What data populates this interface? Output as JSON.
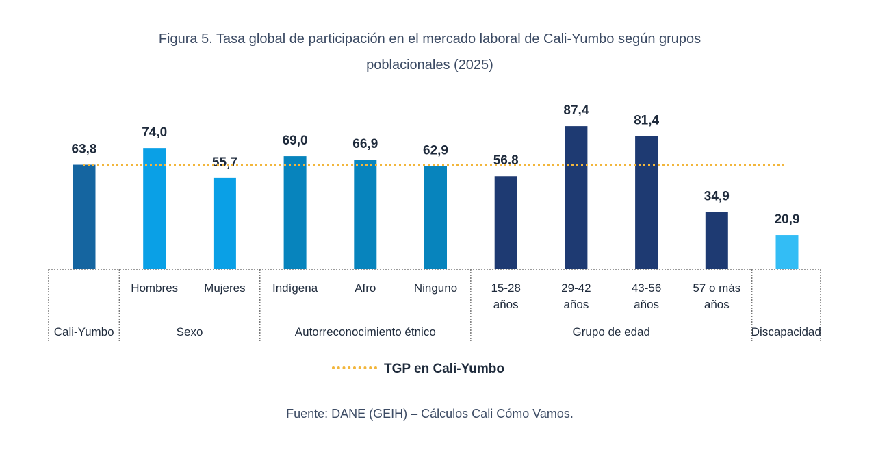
{
  "title_line1": "Figura 5. Tasa global de participación en el mercado laboral de Cali-Yumbo según grupos",
  "title_line2": "poblacionales (2025)",
  "legend_label": "TGP en Cali-Yumbo",
  "source": "Fuente: DANE (GEIH) – Cálculos Cali Cómo Vamos.",
  "colors": {
    "cali_yumbo": "#1565a0",
    "sexo": "#0aa0e6",
    "etnico": "#0784bd",
    "edad": "#1e3a72",
    "discapacidad": "#33bdf5",
    "reference_line": "#f2b63c"
  },
  "chart_data": {
    "type": "bar",
    "categories": [
      "",
      "Hombres",
      "Mujeres",
      "Indígena",
      "Afro",
      "Ninguno",
      "15-28 años",
      "29-42 años",
      "43-56 años",
      "57 o más años",
      ""
    ],
    "category_lines": [
      [
        ""
      ],
      [
        "Hombres"
      ],
      [
        "Mujeres"
      ],
      [
        "Indígena"
      ],
      [
        "Afro"
      ],
      [
        "Ninguno"
      ],
      [
        "15-28",
        "años"
      ],
      [
        "29-42",
        "años"
      ],
      [
        "43-56",
        "años"
      ],
      [
        "57 o más",
        "años"
      ],
      [
        ""
      ]
    ],
    "values": [
      63.8,
      74.0,
      55.7,
      69.0,
      66.9,
      62.9,
      56.8,
      87.4,
      81.4,
      34.9,
      20.9
    ],
    "value_labels": [
      "63,8",
      "74,0",
      "55,7",
      "69,0",
      "66,9",
      "62,9",
      "56,8",
      "87,4",
      "81,4",
      "34,9",
      "20,9"
    ],
    "bar_groups": [
      "cali_yumbo",
      "sexo",
      "sexo",
      "etnico",
      "etnico",
      "etnico",
      "edad",
      "edad",
      "edad",
      "edad",
      "discapacidad"
    ],
    "groups": [
      {
        "label": "Cali-Yumbo",
        "span": [
          0,
          0
        ]
      },
      {
        "label": "Sexo",
        "span": [
          1,
          2
        ]
      },
      {
        "label": "Autorreconocimiento étnico",
        "span": [
          3,
          5
        ]
      },
      {
        "label": "Grupo de edad",
        "span": [
          6,
          9
        ]
      },
      {
        "label": "Discapacidad",
        "span": [
          10,
          10
        ]
      }
    ],
    "reference_line": {
      "name": "TGP en Cali-Yumbo",
      "value": 63.8
    },
    "ylim": [
      0,
      100
    ],
    "grid": false,
    "legend_position": "bottom-center"
  }
}
